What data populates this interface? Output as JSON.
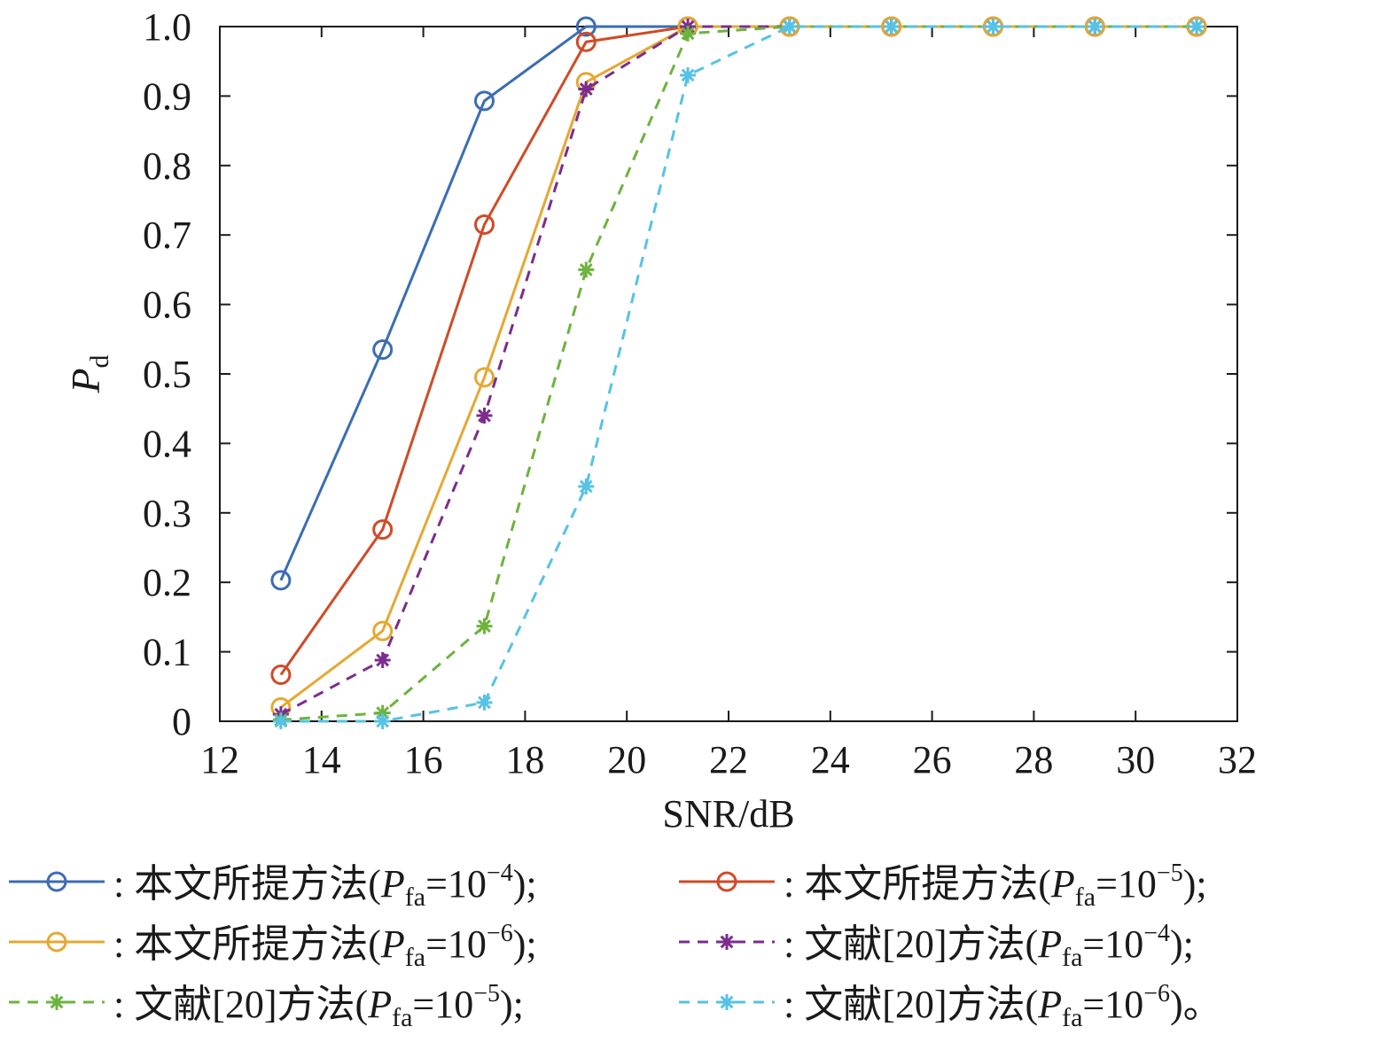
{
  "chart_data": {
    "type": "line",
    "title": "",
    "xlabel": "SNR/dB",
    "ylabel": {
      "main": "P",
      "sub": "d"
    },
    "xlim": [
      12,
      32
    ],
    "ylim": [
      0,
      1.0
    ],
    "xticks": [
      12,
      14,
      16,
      18,
      20,
      22,
      24,
      26,
      28,
      30,
      32
    ],
    "yticks": [
      0,
      0.1,
      0.2,
      0.3,
      0.4,
      0.5,
      0.6,
      0.7,
      0.8,
      0.9,
      1.0
    ],
    "xtick_labels": [
      "12",
      "14",
      "16",
      "18",
      "20",
      "22",
      "24",
      "26",
      "28",
      "30",
      "32"
    ],
    "ytick_labels": [
      "0",
      "0.1",
      "0.2",
      "0.3",
      "0.4",
      "0.5",
      "0.6",
      "0.7",
      "0.8",
      "0.9",
      "1.0"
    ],
    "grid": false,
    "legend_position": "bottom",
    "x": [
      13.2,
      15.2,
      17.2,
      19.2,
      21.2,
      23.2,
      25.2,
      27.2,
      29.2,
      31.2
    ],
    "series": [
      {
        "name": "本文所提方法",
        "legend": {
          "pre": ": 本文所提方法(",
          "p": "P",
          "sub": "fa",
          "eq": "=10",
          "exp": "−4",
          "post": ");"
        },
        "color": "#3a6db3",
        "marker": "circle",
        "dash": "solid",
        "values": [
          0.203,
          0.535,
          0.893,
          1.0,
          1.0,
          1.0,
          1.0,
          1.0,
          1.0,
          1.0
        ]
      },
      {
        "name": "本文所提方法",
        "legend": {
          "pre": ": 本文所提方法(",
          "p": "P",
          "sub": "fa",
          "eq": "=10",
          "exp": "−5",
          "post": ");"
        },
        "color": "#d14a26",
        "marker": "circle",
        "dash": "solid",
        "values": [
          0.067,
          0.276,
          0.715,
          0.978,
          1.0,
          1.0,
          1.0,
          1.0,
          1.0,
          1.0
        ]
      },
      {
        "name": "本文所提方法",
        "legend": {
          "pre": ": 本文所提方法(",
          "p": "P",
          "sub": "fa",
          "eq": "=10",
          "exp": "−6",
          "post": ");"
        },
        "color": "#e5a832",
        "marker": "circle",
        "dash": "solid",
        "values": [
          0.02,
          0.13,
          0.495,
          0.92,
          1.0,
          1.0,
          1.0,
          1.0,
          1.0,
          1.0
        ]
      },
      {
        "name": "文献[20]方法",
        "legend": {
          "pre": ": 文献[20]方法(",
          "p": "P",
          "sub": "fa",
          "eq": "=10",
          "exp": "−4",
          "post": ");"
        },
        "color": "#7b2d8e",
        "marker": "star",
        "dash": "dashed",
        "values": [
          0.01,
          0.088,
          0.44,
          0.91,
          1.0,
          1.0,
          1.0,
          1.0,
          1.0,
          1.0
        ]
      },
      {
        "name": "文献[20]方法",
        "legend": {
          "pre": ": 文献[20]方法(",
          "p": "P",
          "sub": "fa",
          "eq": "=10",
          "exp": "−5",
          "post": ");"
        },
        "color": "#6db33f",
        "marker": "star",
        "dash": "dashed",
        "values": [
          0.002,
          0.012,
          0.137,
          0.65,
          0.99,
          1.0,
          1.0,
          1.0,
          1.0,
          1.0
        ]
      },
      {
        "name": "文献[20]方法",
        "legend": {
          "pre": ": 文献[20]方法(",
          "p": "P",
          "sub": "fa",
          "eq": "=10",
          "exp": "−6",
          "post": ")。"
        },
        "color": "#56c2e6",
        "marker": "star",
        "dash": "dashed",
        "values": [
          0.0,
          0.0,
          0.027,
          0.338,
          0.93,
          1.0,
          1.0,
          1.0,
          1.0,
          1.0
        ]
      }
    ]
  }
}
